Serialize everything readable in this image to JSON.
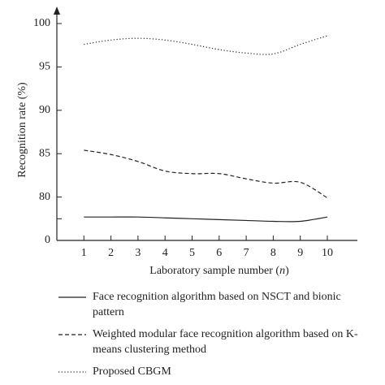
{
  "chart_data": {
    "type": "line",
    "xlabel": "Laboratory sample number",
    "xlabel_var": "n",
    "ylabel": "Recognition rate (%)",
    "x": [
      1,
      2,
      3,
      4,
      5,
      6,
      7,
      8,
      9,
      10
    ],
    "xlim": [
      0,
      11
    ],
    "xticks": [
      1,
      2,
      3,
      4,
      5,
      6,
      7,
      8,
      9,
      10
    ],
    "ylim": [
      0,
      100
    ],
    "ybreak": 75,
    "yticks": [
      0,
      80,
      85,
      90,
      95,
      100
    ],
    "yminor_ticks": [
      77.5
    ],
    "series": [
      {
        "name": "Face recognition algorithm based on NSCT and bionic pattern",
        "color": "#222222",
        "dash": "solid",
        "values": [
          77.7,
          77.7,
          77.7,
          77.6,
          77.5,
          77.4,
          77.3,
          77.2,
          77.2,
          77.7
        ]
      },
      {
        "name": "Weighted modular face recognition algorithm based on K-means clustering method",
        "color": "#222222",
        "dash": "dashed",
        "values": [
          85.4,
          84.9,
          84.1,
          83.0,
          82.7,
          82.7,
          82.1,
          81.6,
          81.7,
          79.9
        ]
      },
      {
        "name": "Proposed CBGM",
        "color": "#222222",
        "dash": "dotted",
        "values": [
          97.6,
          98.1,
          98.3,
          98.1,
          97.6,
          97.0,
          96.6,
          96.5,
          97.6,
          98.6
        ]
      }
    ]
  }
}
